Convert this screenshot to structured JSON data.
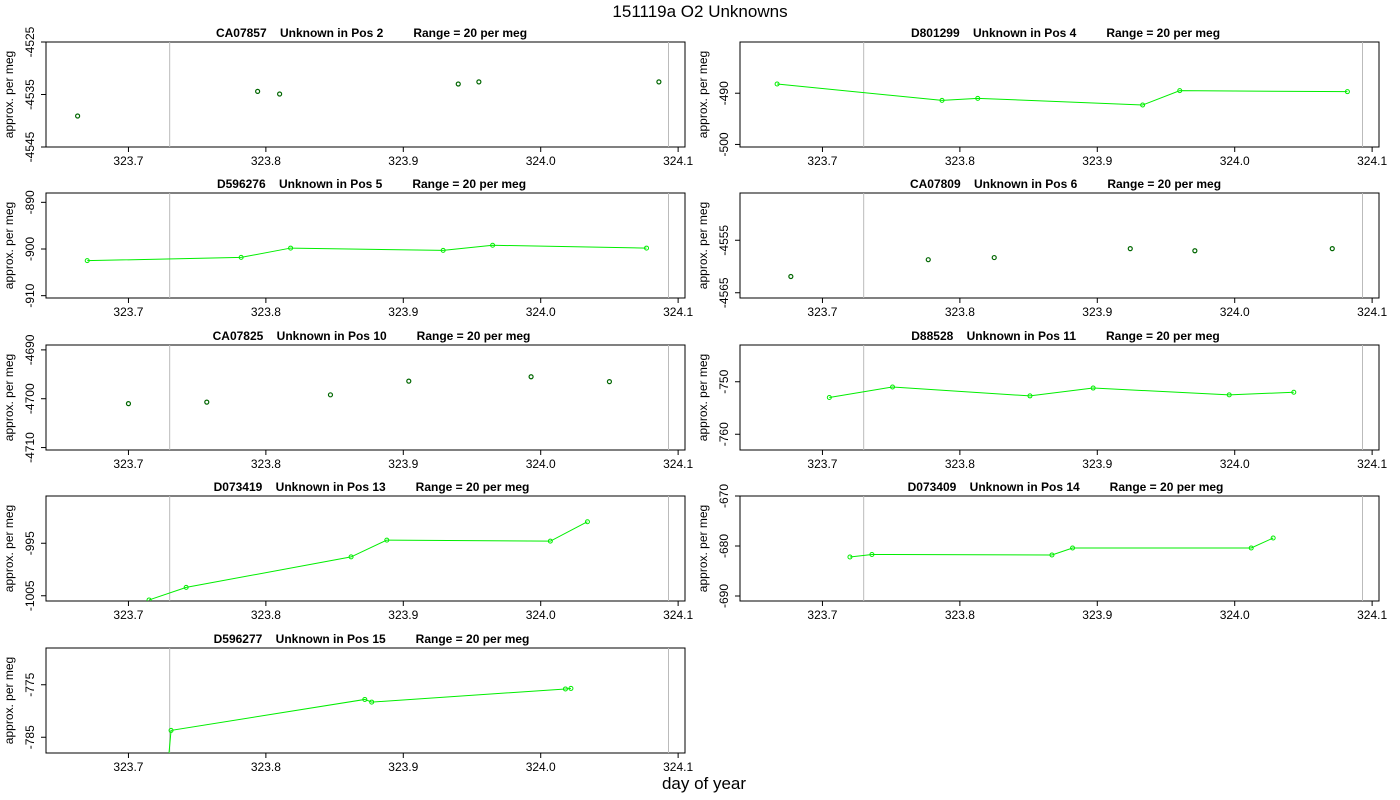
{
  "figure": {
    "title": "151119a  O2 Unknowns",
    "xlabel": "day of year",
    "ylabel": "approx. per meg"
  },
  "colors": {
    "line": "#00ee00",
    "point_dark": "#006600",
    "frame": "#000000",
    "vline": "#bbbbbb"
  },
  "chart_data": [
    {
      "type": "scatter",
      "title": "CA07857    Unknown in Pos 2         Range = 20 per meg",
      "connect": false,
      "xlim": [
        323.64,
        324.105
      ],
      "ylim": [
        -4545,
        -4525
      ],
      "yticks": [
        -4545,
        -4535,
        -4525
      ],
      "xticks": [
        323.7,
        323.8,
        323.9,
        324.0,
        324.1
      ],
      "vlines": [
        323.73,
        324.093
      ],
      "x": [
        323.663,
        323.794,
        323.81,
        323.94,
        323.955,
        324.086
      ],
      "y": [
        -4539.1,
        -4534.4,
        -4534.9,
        -4533.0,
        -4532.6,
        -4532.6
      ]
    },
    {
      "type": "line",
      "title": "D801299    Unknown in Pos 4         Range = 20 per meg",
      "connect": true,
      "xlim": [
        323.64,
        324.105
      ],
      "ylim": [
        -500.5,
        -480
      ],
      "yticks": [
        -500,
        -490
      ],
      "xticks": [
        323.7,
        323.8,
        323.9,
        324.0,
        324.1
      ],
      "vlines": [
        323.73,
        324.093
      ],
      "x": [
        323.667,
        323.787,
        323.813,
        323.933,
        323.96,
        324.082
      ],
      "y": [
        -488.2,
        -491.4,
        -491.0,
        -492.3,
        -489.5,
        -489.7
      ]
    },
    {
      "type": "line",
      "title": "D596276    Unknown in Pos 5         Range = 20 per meg",
      "connect": true,
      "xlim": [
        323.64,
        324.105
      ],
      "ylim": [
        -910.5,
        -888
      ],
      "yticks": [
        -910,
        -900,
        -890
      ],
      "xticks": [
        323.7,
        323.8,
        323.9,
        324.0,
        324.1
      ],
      "vlines": [
        323.73,
        324.093
      ],
      "x": [
        323.67,
        323.782,
        323.818,
        323.929,
        323.965,
        324.077
      ],
      "y": [
        -902.5,
        -901.8,
        -899.8,
        -900.3,
        -899.2,
        -899.8
      ]
    },
    {
      "type": "scatter",
      "title": "CA07809    Unknown in Pos 6         Range = 20 per meg",
      "connect": false,
      "xlim": [
        323.64,
        324.105
      ],
      "ylim": [
        -4566,
        -4546
      ],
      "yticks": [
        -4565,
        -4555
      ],
      "xticks": [
        323.7,
        323.8,
        323.9,
        324.0,
        324.1
      ],
      "vlines": [
        323.73,
        324.093
      ],
      "x": [
        323.677,
        323.777,
        323.825,
        323.924,
        323.971,
        324.071
      ],
      "y": [
        -4561.9,
        -4558.7,
        -4558.3,
        -4556.6,
        -4557.0,
        -4556.6
      ]
    },
    {
      "type": "scatter",
      "title": "CA07825    Unknown in Pos 10         Range = 20 per meg",
      "connect": false,
      "xlim": [
        323.64,
        324.105
      ],
      "ylim": [
        -4710.5,
        -4689
      ],
      "yticks": [
        -4710,
        -4700,
        -4690
      ],
      "xticks": [
        323.7,
        323.8,
        323.9,
        324.0,
        324.1
      ],
      "vlines": [
        323.73,
        324.093
      ],
      "x": [
        323.7,
        323.757,
        323.847,
        323.904,
        323.993,
        324.05
      ],
      "y": [
        -4701.0,
        -4700.7,
        -4699.2,
        -4696.4,
        -4695.5,
        -4696.5
      ]
    },
    {
      "type": "line",
      "title": "D88528    Unknown in Pos 11         Range = 20 per meg",
      "connect": true,
      "xlim": [
        323.64,
        324.105
      ],
      "ylim": [
        -763,
        -743
      ],
      "yticks": [
        -760,
        -750
      ],
      "xticks": [
        323.7,
        323.8,
        323.9,
        324.0,
        324.1
      ],
      "vlines": [
        323.73,
        324.093
      ],
      "x": [
        323.705,
        323.751,
        323.851,
        323.897,
        323.996,
        324.043
      ],
      "y": [
        -753.0,
        -751.0,
        -752.7,
        -751.2,
        -752.5,
        -752.0
      ]
    },
    {
      "type": "line",
      "title": "D073419    Unknown in Pos 13         Range = 20 per meg",
      "connect": true,
      "xlim": [
        323.64,
        324.105
      ],
      "ylim": [
        -1006,
        -986
      ],
      "yticks": [
        -1005,
        -995
      ],
      "xticks": [
        323.7,
        323.8,
        323.9,
        324.0,
        324.1
      ],
      "vlines": [
        323.73,
        324.093
      ],
      "x": [
        323.715,
        323.742,
        323.862,
        323.888,
        324.007,
        324.034
      ],
      "y": [
        -1005.8,
        -1003.4,
        -997.6,
        -994.4,
        -994.6,
        -990.9
      ]
    },
    {
      "type": "line",
      "title": "D073409    Unknown in Pos 14         Range = 20 per meg",
      "connect": true,
      "xlim": [
        323.64,
        324.105
      ],
      "ylim": [
        -691,
        -670
      ],
      "yticks": [
        -690,
        -680,
        -670
      ],
      "xticks": [
        323.7,
        323.8,
        323.9,
        324.0,
        324.1
      ],
      "vlines": [
        323.73,
        324.093
      ],
      "x": [
        323.72,
        323.736,
        323.867,
        323.882,
        324.012,
        324.028
      ],
      "y": [
        -682.2,
        -681.7,
        -681.8,
        -680.4,
        -680.4,
        -678.4
      ]
    },
    {
      "type": "line",
      "title": "D596277    Unknown in Pos 15         Range = 20 per meg",
      "connect": true,
      "xlim": [
        323.64,
        324.105
      ],
      "ylim": [
        -788,
        -768
      ],
      "yticks": [
        -785,
        -775
      ],
      "xticks": [
        323.7,
        323.8,
        323.9,
        324.0,
        324.1
      ],
      "vlines": [
        323.73,
        324.093
      ],
      "x": [
        323.729,
        323.731,
        323.872,
        323.877,
        324.018,
        324.022
      ],
      "y": [
        -789.5,
        -783.7,
        -777.8,
        -778.3,
        -775.8,
        -775.7
      ]
    }
  ]
}
